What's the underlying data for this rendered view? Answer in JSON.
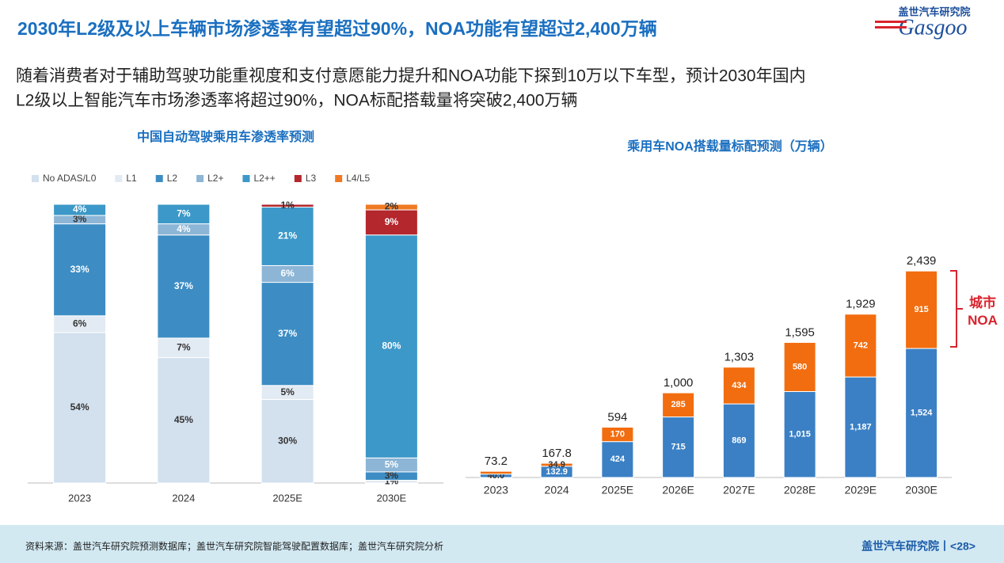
{
  "header": {
    "title": "2030年L2级及以上车辆市场渗透率有望超过90%，NOA功能有望超过2,400万辆",
    "subtitle": [
      "随着消费者对于辅助驾驶功能重视度和支付意愿能力提升和NOA功能下探到10万以下车型，预计2030年国内",
      "L2级以上智能汽车市场渗透率将超过90%，NOA标配搭载量将突破2,400万辆"
    ]
  },
  "logo": {
    "name": "盖世汽车研究院",
    "brand": "Gasgoo"
  },
  "chart_data": [
    {
      "type": "bar",
      "stacked": true,
      "title": "中国自动驾驶乘用车渗透率预测",
      "categories": [
        "2023",
        "2024",
        "2025E",
        "2030E"
      ],
      "ylim": [
        0,
        100
      ],
      "legend": "top-left",
      "series": [
        {
          "name": "No  ADAS/L0",
          "color": "#d3e0ee",
          "values": [
            54,
            45,
            30,
            0
          ],
          "value_labels": [
            "54%",
            "45%",
            "30%",
            null
          ]
        },
        {
          "name": "L1",
          "color": "#e2eaf3",
          "values": [
            6,
            7,
            5,
            1
          ],
          "value_labels": [
            "6%",
            "7%",
            "5%",
            "1%"
          ]
        },
        {
          "name": "L2",
          "color": "#3d8dc4",
          "values": [
            33,
            37,
            37,
            3
          ],
          "value_labels": [
            "33%",
            "37%",
            "37%",
            "3%"
          ]
        },
        {
          "name": "L2+",
          "color": "#8cb5d6",
          "values": [
            3,
            4,
            6,
            5
          ],
          "value_labels": [
            "3%",
            "4%",
            "6%",
            "5%"
          ]
        },
        {
          "name": "L2++",
          "color": "#3c98c8",
          "values": [
            4,
            7,
            21,
            80
          ],
          "value_labels": [
            "4%",
            "7%",
            "21%",
            "80%"
          ]
        },
        {
          "name": "L3",
          "color": "#b3272d",
          "values": [
            0,
            0,
            1,
            9
          ],
          "value_labels": [
            null,
            null,
            "1%",
            "9%"
          ]
        },
        {
          "name": "L4/L5",
          "color": "#f07a23",
          "values": [
            0,
            0,
            0,
            2
          ],
          "value_labels": [
            null,
            null,
            null,
            "2%"
          ]
        }
      ]
    },
    {
      "type": "bar",
      "stacked": true,
      "title": "乘用车NOA搭载量标配预测（万辆）",
      "categories": [
        "2023",
        "2024",
        "2025E",
        "2026E",
        "2027E",
        "2028E",
        "2029E",
        "2030E"
      ],
      "ylim": [
        0,
        2600
      ],
      "series": [
        {
          "color": "#3b80c4",
          "values": [
            40,
            132.9,
            424,
            715,
            869,
            1015,
            1187,
            1524
          ],
          "value_labels": [
            "40.0",
            "132.9",
            "424",
            "715",
            "869",
            "1,015",
            "1,187",
            "1,524"
          ]
        },
        {
          "name": "城市NOA",
          "color": "#f26d0f",
          "values": [
            33.2,
            34.9,
            170,
            285,
            434,
            580,
            742,
            915
          ],
          "value_labels": [
            null,
            "34.9",
            "170",
            "285",
            "434",
            "580",
            "742",
            "915"
          ]
        }
      ],
      "totals": [
        73.2,
        167.8,
        594,
        1000,
        1303,
        1595,
        1929,
        2439
      ],
      "total_labels": [
        "73.2",
        "167.8",
        "594",
        "1,000",
        "1,303",
        "1,595",
        "1,929",
        "2,439"
      ]
    }
  ],
  "footer": {
    "source": "资料来源：盖世汽车研究院预测数据库；盖世汽车研究院智能驾驶配置数据库；盖世汽车研究院分析",
    "page": "盖世汽车研究院丨<28>"
  }
}
